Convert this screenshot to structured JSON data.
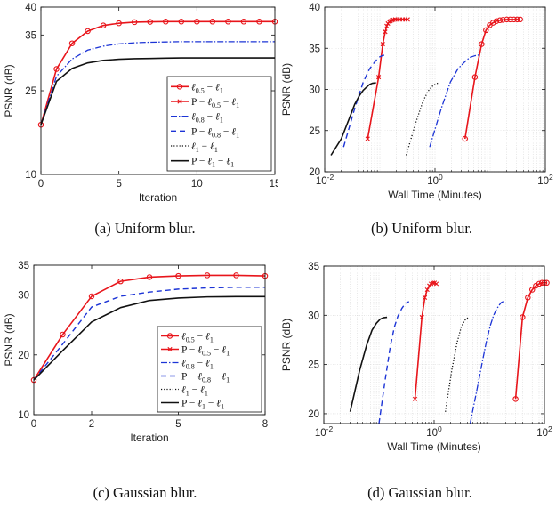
{
  "figure": {
    "captions": [
      "(a) Uniform blur.",
      "(b) Uniform blur.",
      "(c) Gaussian blur.",
      "(d) Gaussian blur."
    ]
  },
  "styles": [
    {
      "color": "#e8151b",
      "dash": "",
      "marker": "circle",
      "width": 1.6
    },
    {
      "color": "#e8151b",
      "dash": "",
      "marker": "x",
      "width": 1.6
    },
    {
      "color": "#1c34d6",
      "dash": "7 2 1.5 2",
      "marker": "",
      "width": 1.3
    },
    {
      "color": "#1c34d6",
      "dash": "6 4",
      "marker": "",
      "width": 1.4
    },
    {
      "color": "#111111",
      "dash": "1.2 2",
      "marker": "",
      "width": 1.3
    },
    {
      "color": "#111111",
      "dash": "",
      "marker": "",
      "width": 1.6
    }
  ],
  "chart_data": [
    {
      "type": "line",
      "panel": "a",
      "xlabel": "Iteration",
      "ylabel": "PSNR (dB)",
      "xscale": "linear",
      "xlim": [
        0,
        15
      ],
      "ylim": [
        10,
        40
      ],
      "xticks": [
        0,
        5,
        10,
        15
      ],
      "yticks": [
        10,
        25,
        35,
        40
      ],
      "ytick_labels": [
        "10",
        "25",
        "35",
        "40"
      ],
      "grid": false,
      "legend": "bottom-right",
      "legend_entries": [
        {
          "lead": "",
          "sym": "ℓ",
          "sub": "0.5",
          "mid": " − ",
          "sym2": "ℓ",
          "sub2": "1"
        },
        {
          "lead": "P − ",
          "sym": "ℓ",
          "sub": "0.5",
          "mid": " − ",
          "sym2": "ℓ",
          "sub2": "1"
        },
        {
          "lead": "",
          "sym": "ℓ",
          "sub": "0.8",
          "mid": " − ",
          "sym2": "ℓ",
          "sub2": "1"
        },
        {
          "lead": "P − ",
          "sym": "ℓ",
          "sub": "0.8",
          "mid": " − ",
          "sym2": "ℓ",
          "sub2": "1"
        },
        {
          "lead": "",
          "sym": "ℓ",
          "sub": "1",
          "mid": " − ",
          "sym2": "ℓ",
          "sub2": "1"
        },
        {
          "lead": "P − ",
          "sym": "ℓ",
          "sub": "1",
          "mid": " − ",
          "sym2": "ℓ",
          "sub2": "1"
        }
      ],
      "series": [
        {
          "name": "ℓ0.5 − ℓ1",
          "style": 0,
          "x": [
            0,
            1,
            2,
            3,
            4,
            5,
            6,
            7,
            8,
            9,
            10,
            11,
            12,
            13,
            14,
            15
          ],
          "y": [
            18.9,
            28.9,
            33.5,
            35.7,
            36.7,
            37.1,
            37.3,
            37.35,
            37.4,
            37.4,
            37.4,
            37.4,
            37.4,
            37.4,
            37.4,
            37.4
          ]
        },
        {
          "name": "P − ℓ0.5 − ℓ1",
          "style": 1,
          "hidden": true,
          "x": [
            0,
            1,
            2,
            3,
            4,
            5,
            6,
            7,
            8,
            9,
            10,
            11,
            12,
            13,
            14,
            15
          ],
          "y": [
            18.9,
            28.9,
            33.5,
            35.7,
            36.7,
            37.1,
            37.3,
            37.35,
            37.4,
            37.4,
            37.4,
            37.4,
            37.4,
            37.4,
            37.4,
            37.4
          ]
        },
        {
          "name": "ℓ0.8 − ℓ1",
          "style": 2,
          "x": [
            0,
            1,
            2,
            3,
            4,
            5,
            6,
            7,
            8,
            9,
            10,
            11,
            12,
            13,
            14,
            15
          ],
          "y": [
            18.9,
            27.6,
            30.7,
            32.3,
            33.0,
            33.4,
            33.6,
            33.7,
            33.75,
            33.8,
            33.8,
            33.8,
            33.8,
            33.8,
            33.8,
            33.8
          ]
        },
        {
          "name": "P − ℓ0.8 − ℓ1",
          "style": 3,
          "hidden": true,
          "x": [
            0,
            1,
            2,
            3,
            4,
            5,
            6,
            7,
            8,
            9,
            10,
            11,
            12,
            13,
            14,
            15
          ],
          "y": [
            18.9,
            27.6,
            30.7,
            32.3,
            33.0,
            33.4,
            33.6,
            33.7,
            33.75,
            33.8,
            33.8,
            33.8,
            33.8,
            33.8,
            33.8,
            33.8
          ]
        },
        {
          "name": "ℓ1 − ℓ1",
          "style": 4,
          "hidden": true,
          "x": [
            0,
            1,
            2,
            3,
            4,
            5,
            6,
            7,
            8,
            9,
            10,
            11,
            12,
            13,
            14,
            15
          ],
          "y": [
            18.9,
            26.7,
            29.0,
            30.0,
            30.45,
            30.65,
            30.75,
            30.8,
            30.85,
            30.9,
            30.9,
            30.9,
            30.9,
            30.9,
            30.9,
            30.9
          ]
        },
        {
          "name": "P − ℓ1 − ℓ1",
          "style": 5,
          "x": [
            0,
            1,
            2,
            3,
            4,
            5,
            6,
            7,
            8,
            9,
            10,
            11,
            12,
            13,
            14,
            15
          ],
          "y": [
            18.9,
            26.7,
            29.0,
            30.0,
            30.45,
            30.65,
            30.75,
            30.8,
            30.85,
            30.9,
            30.9,
            30.9,
            30.9,
            30.9,
            30.9,
            30.9
          ]
        }
      ]
    },
    {
      "type": "line",
      "panel": "b",
      "xlabel": "Wall Time (Minutes)",
      "ylabel": "PSNR (dB)",
      "xscale": "log",
      "xlim": [
        0.01,
        100
      ],
      "ylim": [
        20,
        40
      ],
      "xticks": [
        0.01,
        1,
        100
      ],
      "xtick_base": [
        "10",
        "10",
        "10"
      ],
      "xtick_exp": [
        "-2",
        "0",
        "2"
      ],
      "yticks": [
        20,
        25,
        30,
        35,
        40
      ],
      "grid": true,
      "series": [
        {
          "name": "ℓ0.5 − ℓ1",
          "style": 0,
          "x": [
            3.5,
            5.3,
            7.0,
            8.4,
            9.8,
            11.3,
            13,
            15,
            17,
            20,
            23,
            27,
            31,
            35
          ],
          "y": [
            24.0,
            31.5,
            35.5,
            37.2,
            37.8,
            38.1,
            38.3,
            38.4,
            38.45,
            38.5,
            38.5,
            38.5,
            38.5,
            38.5
          ]
        },
        {
          "name": "P − ℓ0.5 − ℓ1",
          "style": 1,
          "x": [
            0.06,
            0.095,
            0.113,
            0.125,
            0.133,
            0.14,
            0.148,
            0.156,
            0.165,
            0.175,
            0.19,
            0.21,
            0.23,
            0.26,
            0.29,
            0.32
          ],
          "y": [
            24.0,
            31.5,
            35.5,
            37.0,
            37.7,
            38.0,
            38.2,
            38.3,
            38.4,
            38.45,
            38.5,
            38.5,
            38.5,
            38.5,
            38.5,
            38.5
          ]
        },
        {
          "name": "ℓ0.8 − ℓ1",
          "style": 2,
          "x": [
            0.8,
            1.3,
            1.9,
            2.6,
            3.4,
            4.3,
            5.3,
            6.5
          ],
          "y": [
            23.0,
            27.7,
            30.9,
            32.5,
            33.3,
            33.9,
            34.1,
            34.2
          ]
        },
        {
          "name": "P − ℓ0.8 − ℓ1",
          "style": 3,
          "x": [
            0.022,
            0.035,
            0.05,
            0.065,
            0.08,
            0.095,
            0.11,
            0.125
          ],
          "y": [
            23.0,
            27.7,
            30.9,
            32.5,
            33.3,
            33.9,
            34.1,
            34.2
          ]
        },
        {
          "name": "ℓ1 − ℓ1",
          "style": 4,
          "x": [
            0.3,
            0.45,
            0.6,
            0.75,
            0.9,
            1.05,
            1.2
          ],
          "y": [
            22.0,
            26.0,
            28.5,
            29.8,
            30.4,
            30.7,
            30.8
          ]
        },
        {
          "name": "P − ℓ1 − ℓ1",
          "style": 5,
          "x": [
            0.013,
            0.02,
            0.028,
            0.035,
            0.043,
            0.05,
            0.058,
            0.065,
            0.073,
            0.085
          ],
          "y": [
            22.0,
            24.0,
            26.5,
            28.2,
            29.3,
            29.9,
            30.3,
            30.6,
            30.75,
            30.8
          ]
        }
      ]
    },
    {
      "type": "line",
      "panel": "c",
      "xlabel": "Iteration",
      "ylabel": "PSNR (dB)",
      "xscale": "linear",
      "xlim": [
        0,
        8
      ],
      "ylim": [
        10,
        35
      ],
      "xticks": [
        0,
        2,
        5,
        8
      ],
      "yticks": [
        10,
        20,
        30,
        35
      ],
      "grid": false,
      "legend": "bottom-right",
      "legend_entries": [
        {
          "lead": "",
          "sym": "ℓ",
          "sub": "0.5",
          "mid": " − ",
          "sym2": "ℓ",
          "sub2": "1"
        },
        {
          "lead": "P − ",
          "sym": "ℓ",
          "sub": "0.5",
          "mid": " − ",
          "sym2": "ℓ",
          "sub2": "1"
        },
        {
          "lead": "",
          "sym": "ℓ",
          "sub": "0.8",
          "mid": " − ",
          "sym2": "ℓ",
          "sub2": "1"
        },
        {
          "lead": "P − ",
          "sym": "ℓ",
          "sub": "0.8",
          "mid": " − ",
          "sym2": "ℓ",
          "sub2": "1"
        },
        {
          "lead": "",
          "sym": "ℓ",
          "sub": "1",
          "mid": " − ",
          "sym2": "ℓ",
          "sub2": "1"
        },
        {
          "lead": "P − ",
          "sym": "ℓ",
          "sub": "1",
          "mid": " − ",
          "sym2": "ℓ",
          "sub2": "1"
        }
      ],
      "series": [
        {
          "name": "ℓ0.5 − ℓ1",
          "style": 0,
          "x": [
            0,
            1,
            2,
            3,
            4,
            5,
            6,
            7,
            8
          ],
          "y": [
            15.8,
            23.4,
            29.8,
            32.3,
            33.0,
            33.2,
            33.3,
            33.3,
            33.2
          ]
        },
        {
          "name": "P − ℓ0.5 − ℓ1",
          "style": 1,
          "hidden": true,
          "x": [
            0,
            1,
            2,
            3,
            4,
            5,
            6,
            7,
            8
          ],
          "y": [
            15.8,
            23.4,
            29.8,
            32.3,
            33.0,
            33.2,
            33.3,
            33.3,
            33.2
          ]
        },
        {
          "name": "ℓ0.8 − ℓ1",
          "style": 2,
          "hidden": true,
          "x": [
            0,
            1,
            2,
            3,
            4,
            5,
            6,
            7,
            8
          ],
          "y": [
            15.8,
            21.8,
            28.0,
            29.8,
            30.5,
            31.0,
            31.2,
            31.3,
            31.3
          ]
        },
        {
          "name": "P − ℓ0.8 − ℓ1",
          "style": 3,
          "x": [
            0,
            1,
            2,
            3,
            4,
            5,
            6,
            7,
            8
          ],
          "y": [
            15.8,
            21.8,
            28.0,
            29.8,
            30.5,
            31.0,
            31.2,
            31.3,
            31.3
          ]
        },
        {
          "name": "ℓ1 − ℓ1",
          "style": 4,
          "hidden": true,
          "x": [
            0,
            1,
            2,
            3,
            4,
            5,
            6,
            7,
            8
          ],
          "y": [
            15.8,
            20.7,
            25.5,
            27.9,
            29.1,
            29.5,
            29.7,
            29.75,
            29.75
          ]
        },
        {
          "name": "P − ℓ1 − ℓ1",
          "style": 5,
          "x": [
            0,
            1,
            2,
            3,
            4,
            5,
            6,
            7,
            8
          ],
          "y": [
            15.8,
            20.7,
            25.5,
            27.9,
            29.1,
            29.5,
            29.7,
            29.75,
            29.75
          ]
        }
      ]
    },
    {
      "type": "line",
      "panel": "d",
      "xlabel": "Wall Time (Minutes)",
      "ylabel": "PSNR (dB)",
      "xscale": "log",
      "xlim": [
        0.01,
        100
      ],
      "ylim": [
        19,
        35
      ],
      "xticks": [
        0.01,
        1,
        100
      ],
      "xtick_base": [
        "10",
        "10",
        "10"
      ],
      "xtick_exp": [
        "-2",
        "0",
        "2"
      ],
      "yticks": [
        20,
        25,
        30,
        35
      ],
      "grid": true,
      "series": [
        {
          "name": "ℓ0.5 − ℓ1",
          "style": 0,
          "x": [
            30,
            40,
            50,
            60,
            70,
            80,
            90,
            100,
            110
          ],
          "y": [
            21.5,
            29.8,
            31.8,
            32.6,
            33.0,
            33.2,
            33.3,
            33.3,
            33.3
          ]
        },
        {
          "name": "P − ℓ0.5 − ℓ1",
          "style": 1,
          "x": [
            0.45,
            0.6,
            0.68,
            0.75,
            0.82,
            0.88,
            0.95,
            1.02,
            1.1
          ],
          "y": [
            21.5,
            29.8,
            31.8,
            32.6,
            33.0,
            33.2,
            33.3,
            33.3,
            33.2
          ]
        },
        {
          "name": "ℓ0.8 − ℓ1",
          "style": 2,
          "x": [
            4.5,
            6,
            7.5,
            9,
            10.5,
            12,
            13.5,
            15,
            16.5,
            18
          ],
          "y": [
            19.0,
            22.5,
            25.3,
            27.5,
            29.0,
            30.0,
            30.6,
            31.0,
            31.3,
            31.4
          ]
        },
        {
          "name": "P − ℓ0.8 − ℓ1",
          "style": 3,
          "x": [
            0.1,
            0.13,
            0.16,
            0.19,
            0.22,
            0.26,
            0.3,
            0.35
          ],
          "y": [
            19.0,
            23.5,
            26.8,
            28.8,
            29.9,
            30.7,
            31.2,
            31.4
          ]
        },
        {
          "name": "ℓ1 − ℓ1",
          "style": 4,
          "x": [
            1.6,
            2.1,
            2.6,
            3.1,
            3.6,
            4.1
          ],
          "y": [
            20.2,
            24.5,
            27.2,
            28.8,
            29.5,
            29.75
          ]
        },
        {
          "name": "P − ℓ1 − ℓ1",
          "style": 5,
          "x": [
            0.03,
            0.045,
            0.06,
            0.075,
            0.09,
            0.105,
            0.12,
            0.14
          ],
          "y": [
            20.2,
            24.5,
            27.0,
            28.5,
            29.2,
            29.6,
            29.75,
            29.8
          ]
        }
      ]
    }
  ]
}
